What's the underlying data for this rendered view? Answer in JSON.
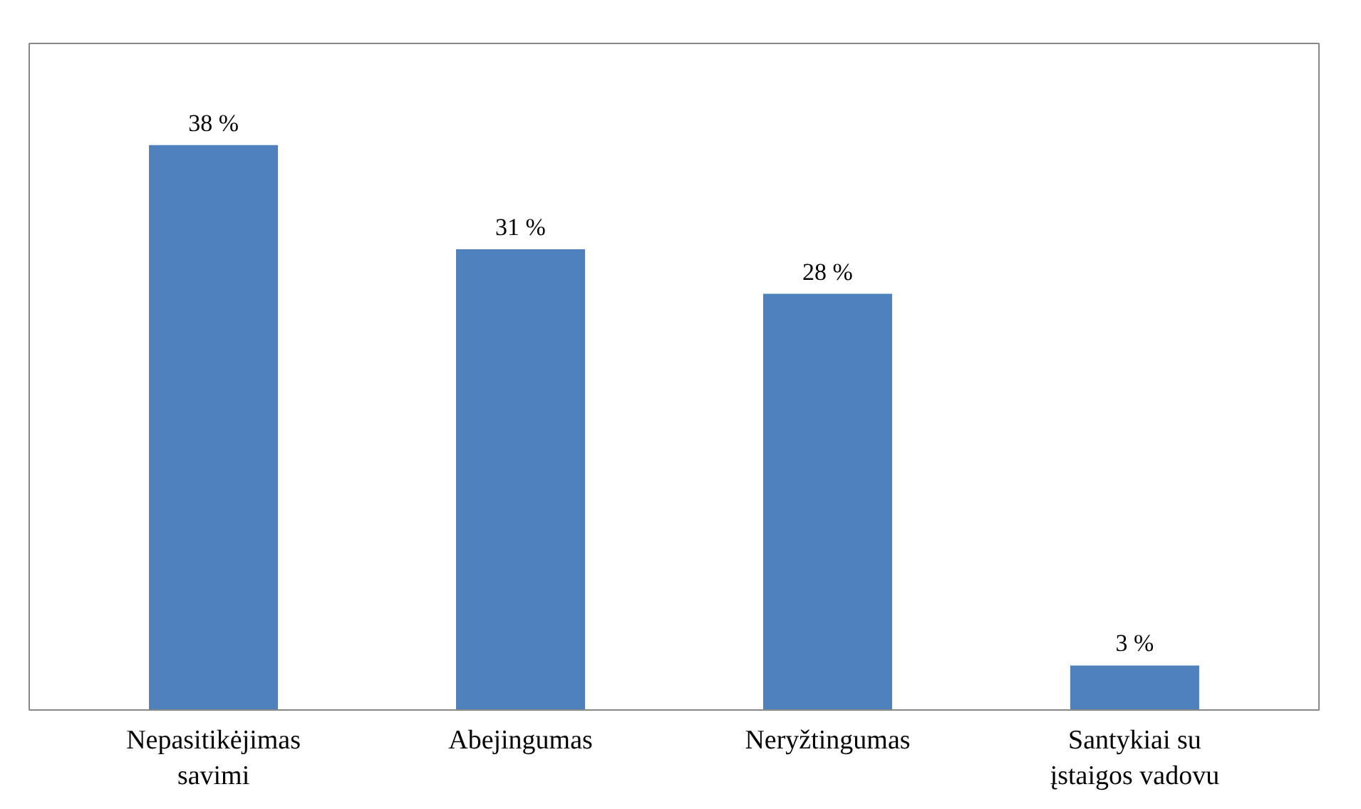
{
  "chart_data": {
    "type": "bar",
    "categories": [
      "Nepasitikėjimas savimi",
      "Abejingumas",
      "Neryžtingumas",
      "Santykiai su įstaigos vadovu"
    ],
    "values": [
      38,
      31,
      28,
      3
    ],
    "value_labels": [
      "38 %",
      "31 %",
      "28 %",
      "3 %"
    ],
    "color": "#4f81bd"
  }
}
